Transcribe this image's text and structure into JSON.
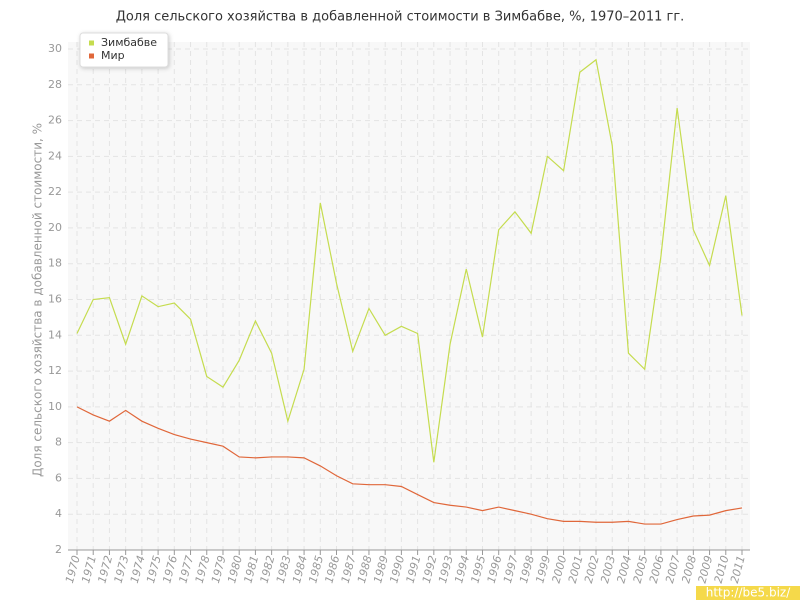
{
  "chart_data": {
    "type": "line",
    "title": "Доля сельского хозяйства в добавленной стоимости в Зимбабве, %, 1970–2011 гг.",
    "y_label": "Доля сельского хозяйства в добавленной стоимости, %",
    "watermark": "http://be5.biz/",
    "x": [
      1970,
      1971,
      1972,
      1973,
      1974,
      1975,
      1976,
      1977,
      1978,
      1979,
      1980,
      1981,
      1982,
      1983,
      1984,
      1985,
      1986,
      1987,
      1988,
      1989,
      1990,
      1991,
      1992,
      1993,
      1994,
      1995,
      1996,
      1997,
      1998,
      1999,
      2000,
      2001,
      2002,
      2003,
      2004,
      2005,
      2006,
      2007,
      2008,
      2009,
      2010,
      2011
    ],
    "xlim": [
      1970,
      2011
    ],
    "ylim": [
      2,
      30
    ],
    "yticks": [
      2,
      4,
      6,
      8,
      10,
      12,
      14,
      16,
      18,
      20,
      22,
      24,
      26,
      28,
      30
    ],
    "grid": true,
    "legend": "top-left",
    "series": [
      {
        "name": "Зимбабве",
        "color": "#c5dc4f",
        "values": [
          14.1,
          16.0,
          16.1,
          13.5,
          16.2,
          15.6,
          15.8,
          14.9,
          11.7,
          11.1,
          12.6,
          14.8,
          13.0,
          9.2,
          12.1,
          21.4,
          16.9,
          13.1,
          15.5,
          14.0,
          14.5,
          14.1,
          6.9,
          13.5,
          17.7,
          13.9,
          19.9,
          20.9,
          19.7,
          24.0,
          23.2,
          28.7,
          29.4,
          24.6,
          13.0,
          12.1,
          18.4,
          26.7,
          19.9,
          17.9,
          21.8,
          15.1
        ]
      },
      {
        "name": "Мир",
        "color": "#e0673a",
        "values": [
          10.0,
          9.55,
          9.2,
          9.8,
          9.2,
          8.8,
          8.45,
          8.2,
          8.0,
          7.8,
          7.2,
          7.15,
          7.2,
          7.2,
          7.15,
          6.7,
          6.15,
          5.7,
          5.65,
          5.65,
          5.55,
          5.1,
          4.65,
          4.5,
          4.4,
          4.2,
          4.4,
          4.2,
          4.0,
          3.75,
          3.6,
          3.6,
          3.55,
          3.55,
          3.6,
          3.45,
          3.45,
          3.7,
          3.9,
          3.95,
          4.2,
          4.35
        ]
      }
    ]
  }
}
